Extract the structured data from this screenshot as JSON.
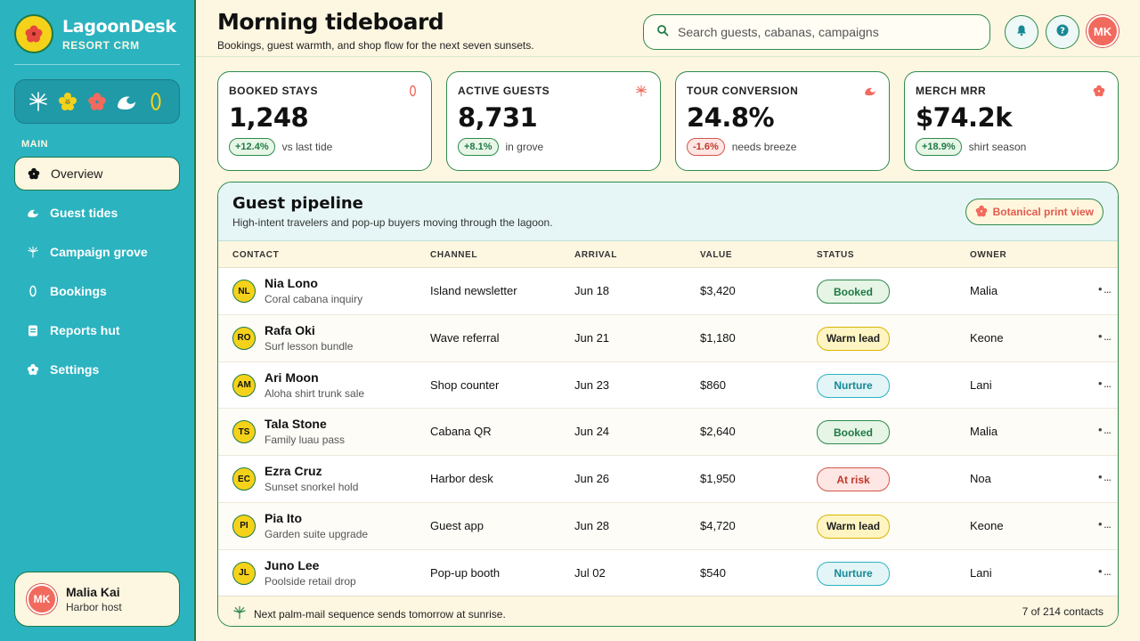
{
  "brand": {
    "name": "LagoonDesk",
    "subtitle": "RESORT CRM"
  },
  "nav": {
    "heading": "MAIN",
    "items": [
      {
        "label": "Overview",
        "icon": "flower-icon"
      },
      {
        "label": "Guest tides",
        "icon": "wave-icon"
      },
      {
        "label": "Campaign grove",
        "icon": "palm-icon"
      },
      {
        "label": "Bookings",
        "icon": "leaf-icon"
      },
      {
        "label": "Reports hut",
        "icon": "clipboard-icon"
      },
      {
        "label": "Settings",
        "icon": "gear-flower-icon"
      }
    ]
  },
  "user": {
    "initials": "MK",
    "name": "Malia Kai",
    "role": "Harbor host"
  },
  "header": {
    "title": "Morning tideboard",
    "subtitle": "Bookings, guest warmth, and shop flow for the next seven sunsets.",
    "search_placeholder": "Search guests, cabanas, campaigns",
    "avatar_initials": "MK"
  },
  "kpis": [
    {
      "label": "BOOKED STAYS",
      "value": "1,248",
      "delta": "+12.4%",
      "trend": "up",
      "note": "vs last tide"
    },
    {
      "label": "ACTIVE GUESTS",
      "value": "8,731",
      "delta": "+8.1%",
      "trend": "up",
      "note": "in grove"
    },
    {
      "label": "TOUR CONVERSION",
      "value": "24.8%",
      "delta": "-1.6%",
      "trend": "down",
      "note": "needs breeze"
    },
    {
      "label": "MERCH MRR",
      "value": "$74.2k",
      "delta": "+18.9%",
      "trend": "up",
      "note": "shirt season"
    }
  ],
  "pipeline": {
    "title": "Guest pipeline",
    "subtitle": "High-intent travelers and pop-up buyers moving through the lagoon.",
    "print_label": "Botanical print view",
    "columns": [
      "CONTACT",
      "CHANNEL",
      "ARRIVAL",
      "VALUE",
      "STATUS",
      "OWNER"
    ],
    "rows": [
      {
        "initials": "NL",
        "name": "Nia Lono",
        "detail": "Coral cabana inquiry",
        "channel": "Island newsletter",
        "arrival": "Jun 18",
        "value": "$3,420",
        "status": "Booked",
        "owner": "Malia"
      },
      {
        "initials": "RO",
        "name": "Rafa Oki",
        "detail": "Surf lesson bundle",
        "channel": "Wave referral",
        "arrival": "Jun 21",
        "value": "$1,180",
        "status": "Warm lead",
        "owner": "Keone"
      },
      {
        "initials": "AM",
        "name": "Ari Moon",
        "detail": "Aloha shirt trunk sale",
        "channel": "Shop counter",
        "arrival": "Jun 23",
        "value": "$860",
        "status": "Nurture",
        "owner": "Lani"
      },
      {
        "initials": "TS",
        "name": "Tala Stone",
        "detail": "Family luau pass",
        "channel": "Cabana QR",
        "arrival": "Jun 24",
        "value": "$2,640",
        "status": "Booked",
        "owner": "Malia"
      },
      {
        "initials": "EC",
        "name": "Ezra Cruz",
        "detail": "Sunset snorkel hold",
        "channel": "Harbor desk",
        "arrival": "Jun 26",
        "value": "$1,950",
        "status": "At risk",
        "owner": "Noa"
      },
      {
        "initials": "PI",
        "name": "Pia Ito",
        "detail": "Garden suite upgrade",
        "channel": "Guest app",
        "arrival": "Jun 28",
        "value": "$4,720",
        "status": "Warm lead",
        "owner": "Keone"
      },
      {
        "initials": "JL",
        "name": "Juno Lee",
        "detail": "Poolside retail drop",
        "channel": "Pop-up booth",
        "arrival": "Jul 02",
        "value": "$540",
        "status": "Nurture",
        "owner": "Lani"
      }
    ],
    "more_label": "• ...",
    "footer_note": "Next palm-mail sequence sends tomorrow at sunrise.",
    "footer_count": "7 of 214 contacts"
  },
  "colors": {
    "teal": "#2bb3c0",
    "green": "#2e8a4e",
    "cream": "#fdf6e1",
    "coral": "#f26a5e",
    "yellow": "#f5d21a"
  }
}
